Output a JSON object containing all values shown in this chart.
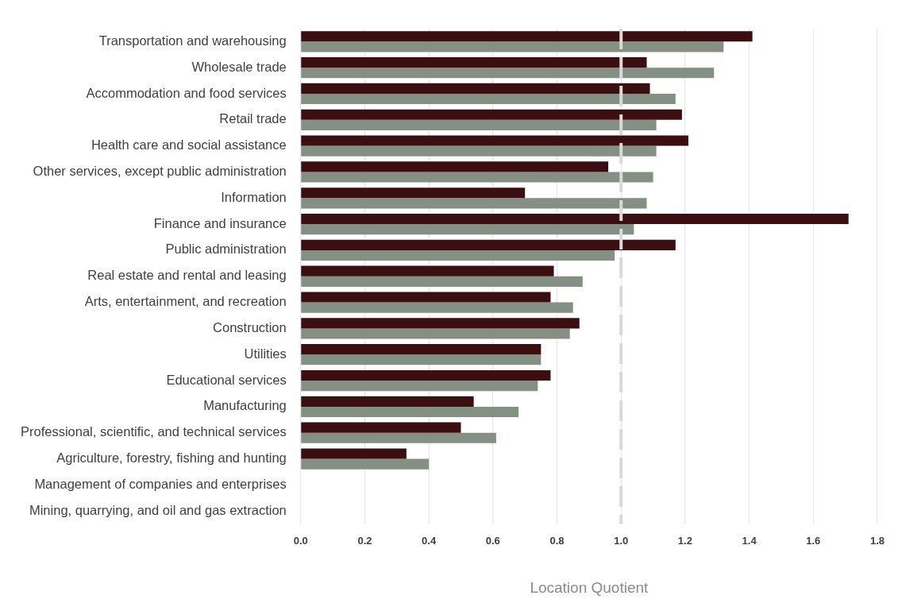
{
  "chart_data": {
    "type": "bar",
    "orientation": "horizontal",
    "xlabel": "Location Quotient",
    "categories": [
      "Transportation and warehousing",
      "Wholesale trade",
      "Accommodation and food services",
      "Retail trade",
      "Health care and social assistance",
      "Other services, except public administration",
      "Information",
      "Finance and insurance",
      "Public administration",
      "Real estate and rental and leasing",
      "Arts, entertainment, and recreation",
      "Construction",
      "Utilities",
      "Educational services",
      "Manufacturing",
      "Professional, scientific, and technical services",
      "Agriculture, forestry, fishing and hunting",
      "Management of companies and enterprises",
      "Mining, quarrying, and oil and gas extraction"
    ],
    "series": [
      {
        "color": "#3b0f12",
        "values": [
          1.41,
          1.08,
          1.09,
          1.19,
          1.21,
          0.96,
          0.7,
          1.71,
          1.17,
          0.79,
          0.78,
          0.87,
          0.75,
          0.78,
          0.54,
          0.5,
          0.33,
          null,
          null
        ]
      },
      {
        "color": "#849084",
        "values": [
          1.32,
          1.29,
          1.17,
          1.11,
          1.11,
          1.1,
          1.08,
          1.04,
          0.98,
          0.88,
          0.85,
          0.84,
          0.75,
          0.74,
          0.68,
          0.61,
          0.4,
          null,
          null
        ]
      }
    ],
    "xlim": [
      0,
      1.8
    ],
    "xticks": [
      {
        "value": 0,
        "label": "0.0"
      },
      {
        "value": 0.2,
        "label": "0.2"
      },
      {
        "value": 0.4,
        "label": "0.4"
      },
      {
        "value": 0.6,
        "label": "0.6"
      },
      {
        "value": 0.8,
        "label": "0.8"
      },
      {
        "value": 1,
        "label": "1.0"
      },
      {
        "value": 1.2,
        "label": "1.2"
      },
      {
        "value": 1.4,
        "label": "1.4"
      },
      {
        "value": 1.6,
        "label": "1.6"
      },
      {
        "value": 1.8,
        "label": "1.8"
      }
    ],
    "grid": "x",
    "legend": false,
    "ref_lines": [
      {
        "axis": "x",
        "value": 1,
        "color": "#d9d9d9",
        "line_style": "dashed"
      }
    ]
  }
}
